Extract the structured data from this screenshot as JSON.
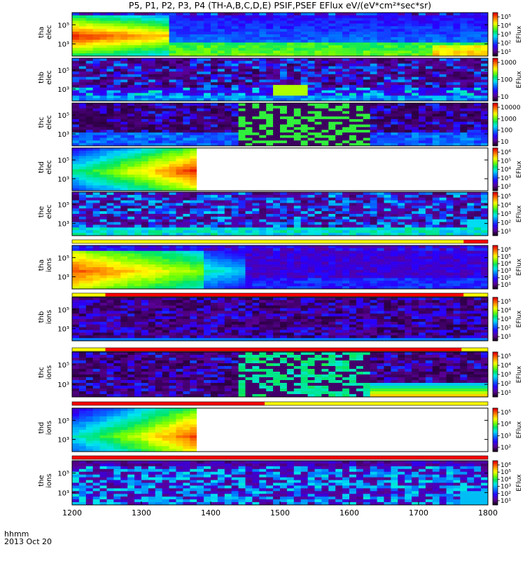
{
  "chart_data": {
    "type": "heatmap",
    "title": "P5, P1, P2, P3, P4 (TH-A,B,C,D,E) PSIF,PSEF EFlux eV/(eV*cm²*sec*sr)",
    "time_label": "hhmm",
    "date_label": "2013 Oct 20",
    "x_ticks": [
      "1200",
      "1300",
      "1400",
      "1500",
      "1600",
      "1700",
      "1800"
    ],
    "x_range": [
      1200,
      1800
    ],
    "panels": [
      {
        "label_probe": "tha",
        "label_species": "elec",
        "y_ticks": [
          "10⁵",
          "10³"
        ],
        "cbar_ticks": [
          "10⁵",
          "10⁴",
          "10³",
          "10²",
          "10¹"
        ],
        "cbar_label": "EFlux",
        "empty_after": null,
        "pattern": "elec_a"
      },
      {
        "label_probe": "thb",
        "label_species": "elec",
        "y_ticks": [
          "10⁵",
          "10³"
        ],
        "cbar_ticks": [
          "1000",
          "100",
          "10"
        ],
        "cbar_label": "EFlux",
        "empty_after": null,
        "pattern": "elec_b"
      },
      {
        "label_probe": "thc",
        "label_species": "elec",
        "y_ticks": [
          "10⁵",
          "10³"
        ],
        "cbar_ticks": [
          "10000",
          "1000",
          "100",
          "10"
        ],
        "cbar_label": "",
        "empty_after": null,
        "pattern": "elec_c"
      },
      {
        "label_probe": "thd",
        "label_species": "elec",
        "y_ticks": [
          "10⁵",
          "10³"
        ],
        "cbar_ticks": [
          "10⁶",
          "10⁵",
          "10⁴",
          "10³",
          "10²"
        ],
        "cbar_label": "EFlux",
        "empty_after": 1380,
        "pattern": "elec_d"
      },
      {
        "label_probe": "the",
        "label_species": "elec",
        "y_ticks": [
          "10⁵",
          "10³"
        ],
        "cbar_ticks": [
          "10⁵",
          "10⁴",
          "10³",
          "10²",
          "10¹"
        ],
        "cbar_label": "EFlux",
        "empty_after": null,
        "pattern": "elec_e"
      },
      {
        "label_probe": "tha",
        "label_species": "ions",
        "y_ticks": [
          "10⁵",
          "10³"
        ],
        "cbar_ticks": [
          "10⁶",
          "10⁵",
          "10⁴",
          "10³",
          "10²",
          "10¹"
        ],
        "cbar_label": "EFlux",
        "empty_after": null,
        "pattern": "ion_a"
      },
      {
        "label_probe": "thb",
        "label_species": "ions",
        "y_ticks": [
          "10⁵",
          "10³"
        ],
        "cbar_ticks": [
          "10⁵",
          "10⁴",
          "10³",
          "10²",
          "10¹"
        ],
        "cbar_label": "EFlux",
        "empty_after": null,
        "pattern": "ion_b"
      },
      {
        "label_probe": "thc",
        "label_species": "ions",
        "y_ticks": [
          "10⁵",
          "10³"
        ],
        "cbar_ticks": [
          "10⁵",
          "10⁴",
          "10³",
          "10²",
          "10¹"
        ],
        "cbar_label": "EFlux",
        "empty_after": null,
        "pattern": "ion_c"
      },
      {
        "label_probe": "thd",
        "label_species": "ions",
        "y_ticks": [
          "10⁵",
          "10³"
        ],
        "cbar_ticks": [
          "10⁵",
          "10⁴",
          "10³",
          "10²"
        ],
        "cbar_label": "EFlux",
        "empty_after": 1380,
        "pattern": "ion_d"
      },
      {
        "label_probe": "the",
        "label_species": "ions",
        "y_ticks": [
          "10⁵",
          "10³"
        ],
        "cbar_ticks": [
          "10⁶",
          "10⁵",
          "10⁴",
          "10³",
          "10²",
          "10¹"
        ],
        "cbar_label": "EFlux",
        "empty_after": null,
        "pattern": "ion_e"
      }
    ],
    "mode_bars": [
      {
        "after_panel": 4,
        "segments": [
          {
            "from": 1200,
            "to": 1765,
            "color": "#ffff00"
          },
          {
            "from": 1765,
            "to": 1800,
            "color": "#ff0000"
          }
        ]
      },
      {
        "after_panel": 5,
        "segments": [
          {
            "from": 1200,
            "to": 1248,
            "color": "#ffff00"
          },
          {
            "from": 1248,
            "to": 1765,
            "color": "#ff0000"
          },
          {
            "from": 1765,
            "to": 1800,
            "color": "#ffff00"
          }
        ]
      },
      {
        "after_panel": 6,
        "segments": [
          {
            "from": 1200,
            "to": 1248,
            "color": "#ffff00"
          },
          {
            "from": 1248,
            "to": 1762,
            "color": "#ff0000"
          },
          {
            "from": 1762,
            "to": 1800,
            "color": "#ffff00"
          }
        ]
      },
      {
        "after_panel": 7,
        "segments": [
          {
            "from": 1200,
            "to": 1478,
            "color": "#ff0000"
          },
          {
            "from": 1478,
            "to": 1800,
            "color": "#ffff00"
          }
        ]
      },
      {
        "after_panel": 8,
        "segments": [
          {
            "from": 1200,
            "to": 1800,
            "color": "#ff0000"
          }
        ]
      }
    ]
  }
}
